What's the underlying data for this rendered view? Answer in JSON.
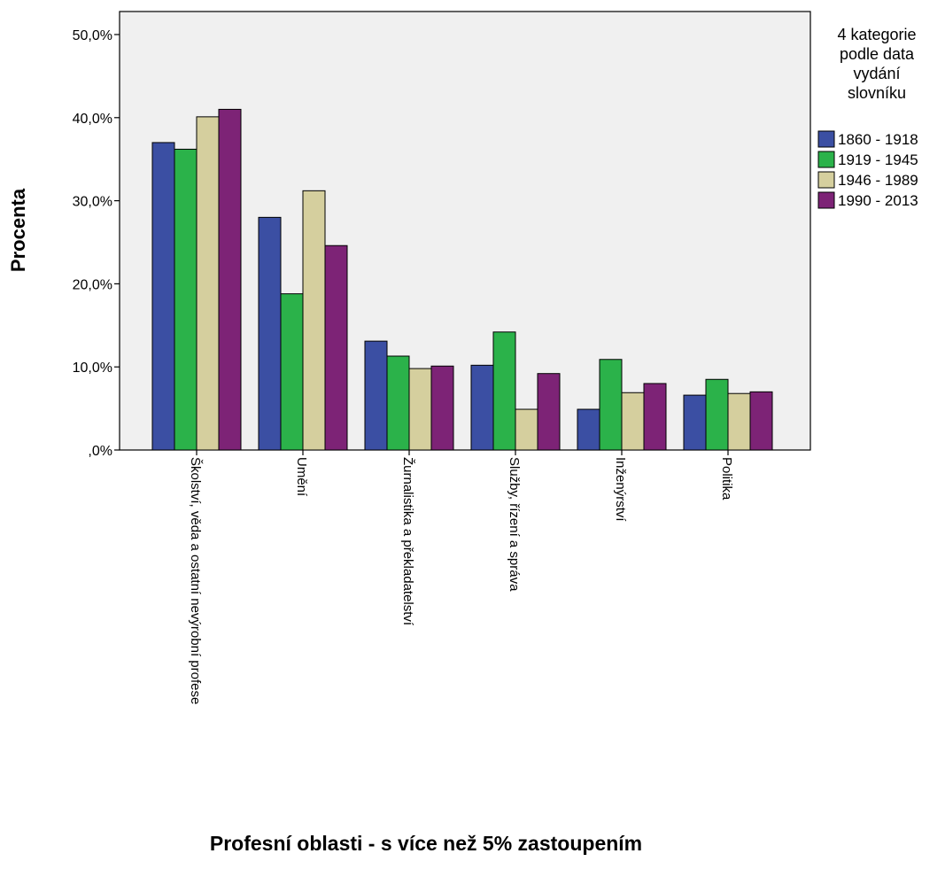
{
  "chart_data": {
    "type": "bar",
    "xlabel": "Profesní oblasti - s více než 5% zastoupením",
    "ylabel": "Procenta",
    "ylim": [
      0,
      50
    ],
    "yticks": [
      0,
      10,
      20,
      30,
      40,
      50
    ],
    "ytick_labels": [
      ",0%",
      "10,0%",
      "20,0%",
      "30,0%",
      "40,0%",
      "50,0%"
    ],
    "grid": false,
    "legend_position": "right",
    "legend_title": "4 kategorie podle data vydání slovníku",
    "legend_title_lines": [
      "4 kategorie",
      "podle data",
      "vydání",
      "slovníku"
    ],
    "categories": [
      "Školství, věda a ostatní nevýrobní profese",
      "Umění",
      "Žurnalistika a překladatelství",
      "Služby, řízení a správa",
      "Inženýrství",
      "Politika"
    ],
    "series": [
      {
        "name": "1860 - 1918",
        "color": "#3b4fa3",
        "values": [
          37.0,
          28.0,
          13.1,
          10.2,
          4.9,
          6.6
        ]
      },
      {
        "name": "1919 - 1945",
        "color": "#2bb24a",
        "values": [
          36.2,
          18.8,
          11.3,
          14.2,
          10.9,
          8.5
        ]
      },
      {
        "name": "1946 - 1989",
        "color": "#d5cf9e",
        "values": [
          40.1,
          31.2,
          9.8,
          4.9,
          6.9,
          6.8
        ]
      },
      {
        "name": "1990 - 2013",
        "color": "#7d2376",
        "values": [
          41.0,
          24.6,
          10.1,
          9.2,
          8.0,
          7.0
        ]
      }
    ]
  }
}
